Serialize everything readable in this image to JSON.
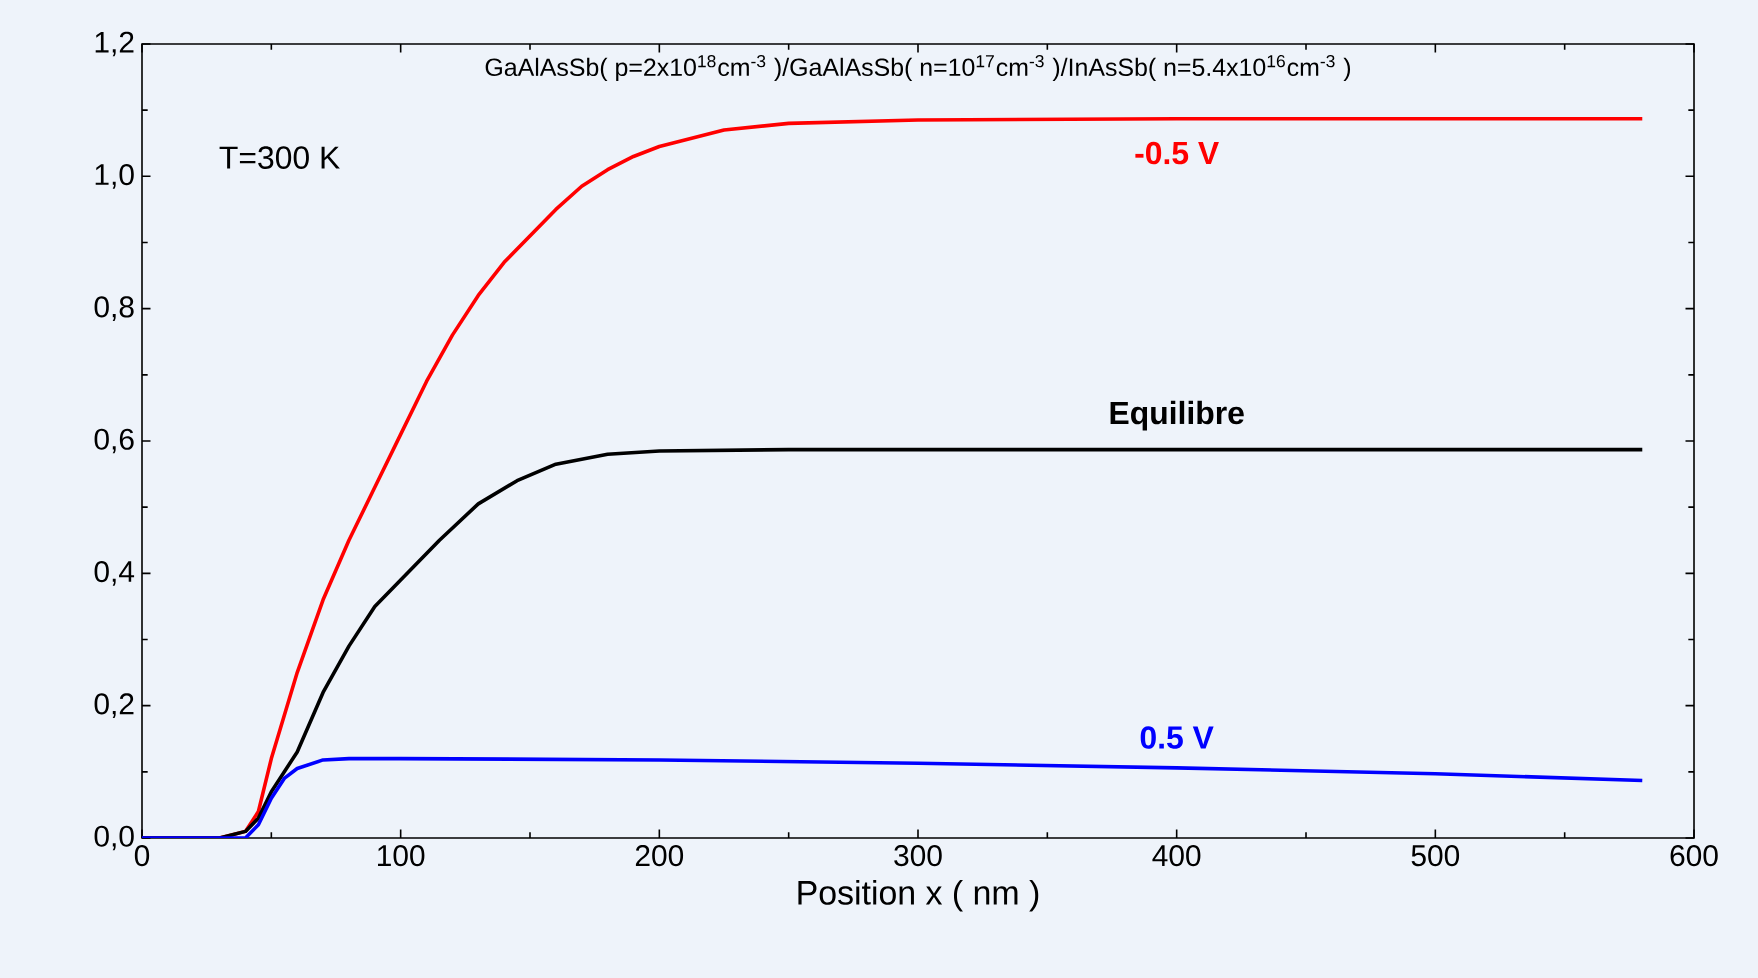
{
  "chart_data": {
    "type": "line",
    "xlabel": "Position x ( nm )",
    "annotations": [
      "GaAlAsSb( p=2x10$^{18}$cm$^{-3}$ )/GaAlAsSb( n=10$^{17}$cm$^{-3}$ )/InAsSb( n=5.4x10$^{16}$cm$^{-3}$ )",
      "T=300 K"
    ],
    "xlim": [
      0,
      600
    ],
    "ylim": [
      0,
      1.2
    ],
    "xticks": [
      0,
      100,
      200,
      300,
      400,
      500,
      600
    ],
    "yticks": [
      {
        "value": 0,
        "label": "0,0"
      },
      {
        "value": 0.2,
        "label": "0,2"
      },
      {
        "value": 0.4,
        "label": "0,4"
      },
      {
        "value": 0.6,
        "label": "0,6"
      },
      {
        "value": 0.8,
        "label": "0,8"
      },
      {
        "value": 1.0,
        "label": "1,0"
      },
      {
        "value": 1.2,
        "label": "1,2"
      }
    ],
    "grid": false,
    "legend": false,
    "marker": "none",
    "line_style": "solid",
    "series": [
      {
        "name": "-0.5 V",
        "color": "#ff0000",
        "x": [
          0,
          30,
          40,
          45,
          50,
          60,
          70,
          80,
          90,
          100,
          110,
          120,
          130,
          140,
          150,
          160,
          170,
          180,
          190,
          200,
          225,
          250,
          300,
          400,
          500,
          580
        ],
        "values": [
          0,
          0,
          0.01,
          0.04,
          0.12,
          0.25,
          0.36,
          0.45,
          0.53,
          0.61,
          0.69,
          0.76,
          0.82,
          0.87,
          0.91,
          0.95,
          0.985,
          1.01,
          1.03,
          1.045,
          1.07,
          1.08,
          1.085,
          1.087,
          1.087,
          1.087
        ]
      },
      {
        "name": "Equilibre",
        "color": "#000000",
        "x": [
          0,
          30,
          40,
          45,
          50,
          60,
          70,
          80,
          90,
          100,
          115,
          130,
          145,
          160,
          180,
          200,
          250,
          400,
          580
        ],
        "values": [
          0,
          0,
          0.01,
          0.03,
          0.07,
          0.13,
          0.22,
          0.29,
          0.35,
          0.39,
          0.45,
          0.505,
          0.54,
          0.565,
          0.58,
          0.585,
          0.587,
          0.587,
          0.587
        ]
      },
      {
        "name": "0.5 V",
        "color": "#0000ff",
        "x": [
          0,
          30,
          40,
          45,
          50,
          55,
          60,
          70,
          80,
          100,
          200,
          300,
          400,
          500,
          580
        ],
        "values": [
          0,
          0,
          0.0,
          0.02,
          0.06,
          0.09,
          0.105,
          0.118,
          0.12,
          0.12,
          0.118,
          0.113,
          0.106,
          0.097,
          0.087
        ]
      }
    ]
  }
}
